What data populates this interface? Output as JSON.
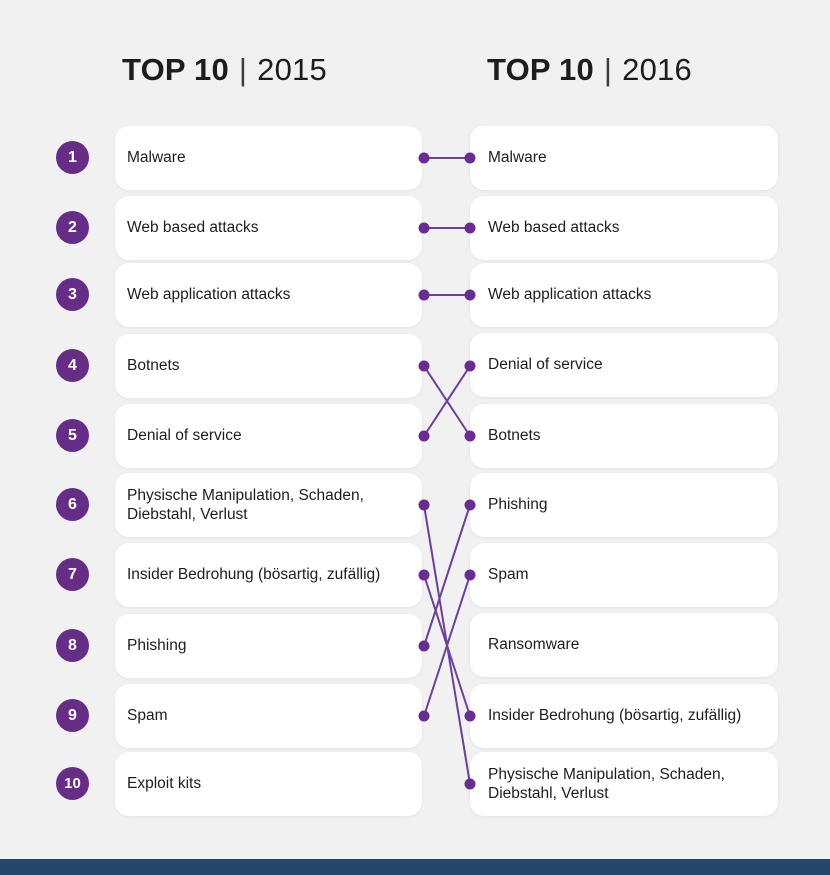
{
  "header_2015": {
    "bold": "TOP 10",
    "separator": "|",
    "year": "2015"
  },
  "header_2016": {
    "bold": "TOP 10",
    "separator": "|",
    "year": "2016"
  },
  "list_2015": [
    {
      "rank": "1",
      "label": "Malware"
    },
    {
      "rank": "2",
      "label": "Web based attacks"
    },
    {
      "rank": "3",
      "label": "Web application attacks"
    },
    {
      "rank": "4",
      "label": "Botnets"
    },
    {
      "rank": "5",
      "label": "Denial of service"
    },
    {
      "rank": "6",
      "label": "Physische Manipulation, Schaden, Diebstahl, Verlust"
    },
    {
      "rank": "7",
      "label": "Insider Bedrohung (bösartig, zufällig)"
    },
    {
      "rank": "8",
      "label": "Phishing"
    },
    {
      "rank": "9",
      "label": "Spam"
    },
    {
      "rank": "10",
      "label": "Exploit kits"
    }
  ],
  "list_2016": [
    {
      "label": "Malware"
    },
    {
      "label": "Web based attacks"
    },
    {
      "label": "Web application attacks"
    },
    {
      "label": "Denial of service"
    },
    {
      "label": "Botnets"
    },
    {
      "label": "Phishing"
    },
    {
      "label": "Spam"
    },
    {
      "label": "Ransomware"
    },
    {
      "label": "Insider Bedrohung (bösartig, zufällig)"
    },
    {
      "label": "Physische Manipulation, Schaden, Diebstahl, Verlust"
    }
  ],
  "links": [
    {
      "from": 1,
      "to": 1
    },
    {
      "from": 2,
      "to": 2
    },
    {
      "from": 3,
      "to": 3
    },
    {
      "from": 4,
      "to": 5
    },
    {
      "from": 5,
      "to": 4
    },
    {
      "from": 6,
      "to": 10
    },
    {
      "from": 7,
      "to": 9
    },
    {
      "from": 8,
      "to": 6
    },
    {
      "from": 9,
      "to": 7
    }
  ],
  "colors": {
    "background": "#f1f1f1",
    "card": "#ffffff",
    "rank_circle": "#662d87",
    "connector_line": "#6b3f9d",
    "connector_dot": "#692c92",
    "footer_bar": "#25476a",
    "text": "#1d1d1b"
  }
}
